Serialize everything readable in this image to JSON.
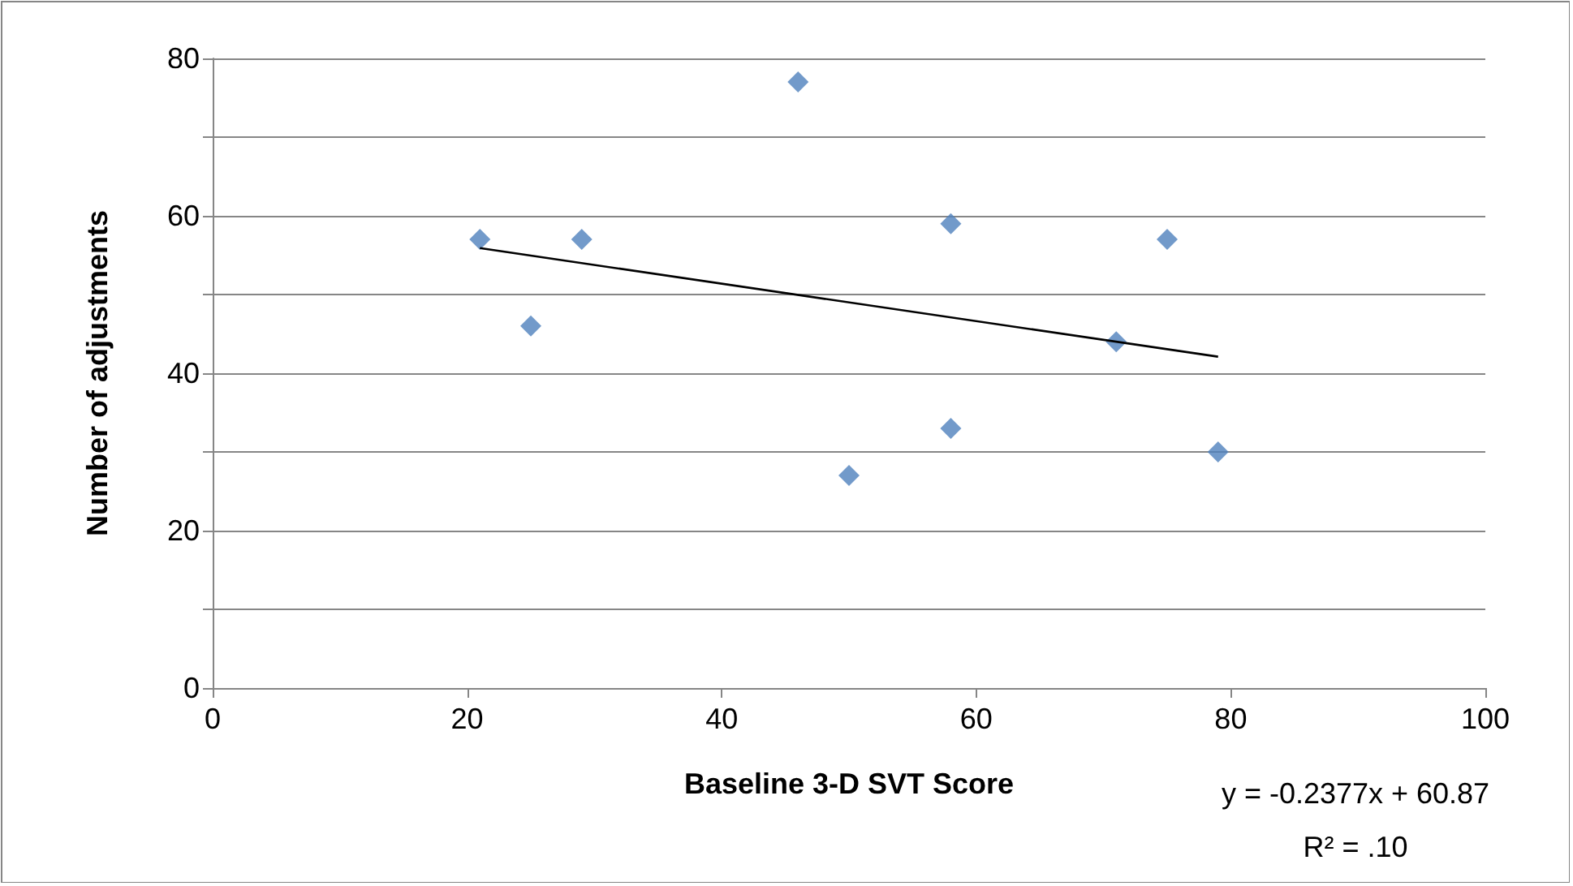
{
  "chart_data": {
    "type": "scatter",
    "xlabel": "Baseline 3-D SVT Score",
    "ylabel": "Number of adjustments",
    "xlim": [
      0,
      100
    ],
    "xticks": [
      0,
      20,
      40,
      60,
      80,
      100
    ],
    "ylim": [
      0,
      80
    ],
    "yticks": [
      0,
      {
        "value": 10,
        "label": null
      },
      20,
      {
        "value": 30,
        "label": null
      },
      40,
      {
        "value": 50,
        "label": null
      },
      60,
      {
        "value": 70,
        "label": null
      },
      80
    ],
    "grid": "y",
    "marker": "diamond",
    "series": [
      {
        "color": "#4f81bd",
        "x": [
          21,
          25,
          29,
          46,
          50,
          58,
          58,
          71,
          75,
          79
        ],
        "values": [
          57,
          46,
          57,
          77,
          27,
          59,
          33,
          44,
          57,
          30
        ]
      },
      {
        "type": "line",
        "color": "#000000",
        "marker": "none",
        "x": [
          21,
          79
        ],
        "values": [
          55.9,
          42.1
        ]
      }
    ],
    "annotations": [
      "y = -0.2377x + 60.87",
      "R² = .10"
    ]
  }
}
